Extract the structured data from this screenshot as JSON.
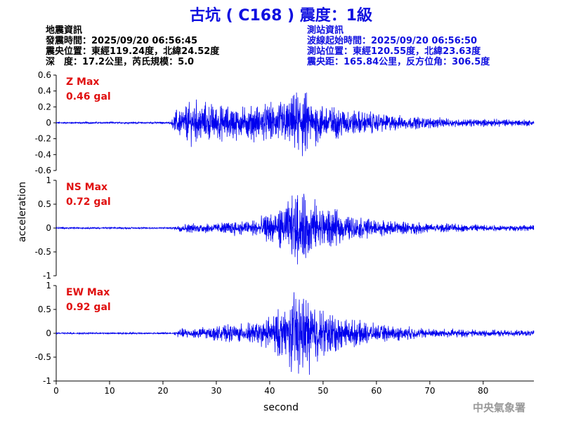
{
  "title": "古坑 ( C168 ) 震度：1級",
  "quake_info": {
    "heading": "地震資訊",
    "origin_time": "發震時間：2025/09/20 06:56:45",
    "epicenter": "震央位置：東經119.24度，北緯24.52度",
    "depth_magnitude": "深　度：17.2公里，芮氏規模：5.0"
  },
  "station_info": {
    "heading": "測站資訊",
    "wave_onset": "波線起始時間：2025/09/20 06:56:50",
    "station_location": "測站位置：東經120.55度，北緯23.63度",
    "distance_azimuth": "震央距：165.84公里，反方位角：306.5度"
  },
  "footer": "中央氣象署",
  "chart_data": {
    "type": "line",
    "xlabel": "second",
    "ylabel": "acceleration",
    "xlim": [
      0,
      89.5
    ],
    "xticks": [
      0,
      10,
      20,
      30,
      40,
      50,
      60,
      70,
      80
    ],
    "xtick_labels": [
      "0",
      "10",
      "20",
      "30",
      "40",
      "50",
      "60",
      "70",
      "80"
    ],
    "line_color": "#0000ee",
    "label_color": "#e01010",
    "panels": [
      {
        "name": "Z",
        "max_label": "Z Max",
        "max_value": "0.46 gal",
        "ylim": [
          -0.6,
          0.6
        ],
        "yticks": [
          -0.6,
          -0.4,
          -0.2,
          0,
          0.2,
          0.4,
          0.6
        ],
        "ytick_labels": [
          "-0.6",
          "-0.4",
          "-0.2",
          "0",
          "0.2",
          "0.4",
          "0.6"
        ],
        "noise": 0.008,
        "envelope": [
          [
            0,
            0.008
          ],
          [
            21.5,
            0.008
          ],
          [
            22.5,
            0.12
          ],
          [
            26,
            0.2
          ],
          [
            30,
            0.16
          ],
          [
            35,
            0.14
          ],
          [
            40,
            0.17
          ],
          [
            44,
            0.22
          ],
          [
            46,
            0.32
          ],
          [
            48,
            0.2
          ],
          [
            52,
            0.15
          ],
          [
            58,
            0.1
          ],
          [
            65,
            0.06
          ],
          [
            75,
            0.035
          ],
          [
            89.5,
            0.03
          ]
        ]
      },
      {
        "name": "NS",
        "max_label": "NS Max",
        "max_value": "0.72 gal",
        "ylim": [
          -1,
          1
        ],
        "yticks": [
          -1,
          -0.5,
          0,
          0.5,
          1
        ],
        "ytick_labels": [
          "-1",
          "-0.5",
          "0",
          "0.5",
          "1"
        ],
        "noise": 0.012,
        "envelope": [
          [
            0,
            0.012
          ],
          [
            22,
            0.012
          ],
          [
            23,
            0.06
          ],
          [
            30,
            0.08
          ],
          [
            38,
            0.14
          ],
          [
            42,
            0.3
          ],
          [
            45,
            0.5
          ],
          [
            47,
            0.48
          ],
          [
            50,
            0.32
          ],
          [
            55,
            0.18
          ],
          [
            60,
            0.12
          ],
          [
            70,
            0.07
          ],
          [
            80,
            0.05
          ],
          [
            89.5,
            0.04
          ]
        ]
      },
      {
        "name": "EW",
        "max_label": "EW Max",
        "max_value": "0.92 gal",
        "ylim": [
          -1,
          1
        ],
        "yticks": [
          -1,
          -0.5,
          0,
          0.5,
          1
        ],
        "ytick_labels": [
          "-1",
          "-0.5",
          "0",
          "0.5",
          "1"
        ],
        "noise": 0.012,
        "envelope": [
          [
            0,
            0.012
          ],
          [
            22,
            0.012
          ],
          [
            23,
            0.07
          ],
          [
            30,
            0.1
          ],
          [
            38,
            0.16
          ],
          [
            42,
            0.35
          ],
          [
            45,
            0.62
          ],
          [
            47,
            0.55
          ],
          [
            50,
            0.35
          ],
          [
            55,
            0.2
          ],
          [
            60,
            0.13
          ],
          [
            70,
            0.07
          ],
          [
            80,
            0.05
          ],
          [
            89.5,
            0.04
          ]
        ]
      }
    ]
  }
}
